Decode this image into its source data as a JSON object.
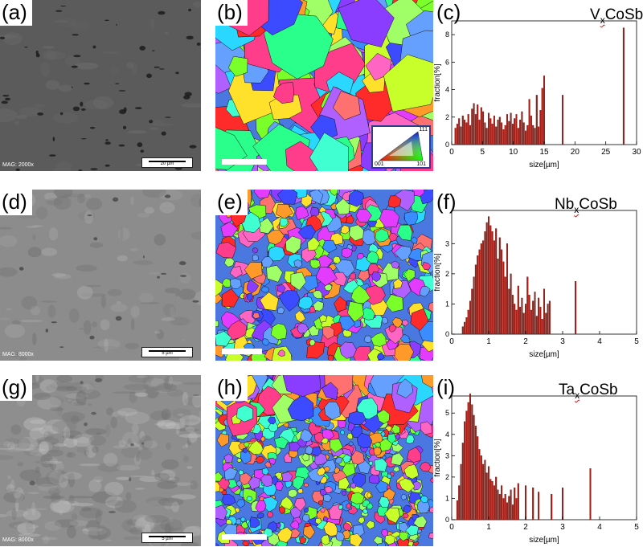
{
  "rows": [
    {
      "sem": {
        "label": "(a)",
        "mag": "MAG: 2000x",
        "scale": "20 µm"
      },
      "ebsd": {
        "label": "(b)",
        "ipf_labels": {
          "top": "111",
          "left": "001",
          "right": "101"
        }
      },
      "chart_label": "(c)",
      "comp": {
        "pre": "V",
        "sub": "x",
        "post": "CoSb"
      }
    },
    {
      "sem": {
        "label": "(d)",
        "mag": "MAG: 8000x",
        "scale": "5 µm"
      },
      "ebsd": {
        "label": "(e)"
      },
      "chart_label": "(f)",
      "comp": {
        "pre": "Nb",
        "sub": "x",
        "post": "CoSb"
      }
    },
    {
      "sem": {
        "label": "(g)",
        "mag": "MAG: 8000x",
        "scale": "5 µm"
      },
      "ebsd": {
        "label": "(h)"
      },
      "chart_label": "(i)",
      "comp": {
        "pre": "Ta",
        "sub": "x",
        "post": "CoSb"
      }
    }
  ],
  "chart_data": [
    {
      "type": "bar",
      "xlabel": "size[µm]",
      "ylabel": "fraction[%]",
      "xlim": [
        0,
        30
      ],
      "ylim": [
        0,
        9
      ],
      "xticks": [
        0,
        5,
        10,
        15,
        20,
        25,
        30
      ],
      "yticks": [
        0,
        2,
        4,
        6,
        8
      ],
      "color": "#a81e16",
      "x": [
        0.6,
        0.9,
        1.2,
        1.5,
        1.8,
        2.1,
        2.4,
        2.7,
        3.0,
        3.3,
        3.6,
        3.9,
        4.2,
        4.5,
        4.8,
        5.1,
        5.4,
        5.7,
        6.0,
        6.3,
        6.6,
        6.9,
        7.2,
        7.5,
        7.8,
        8.1,
        8.4,
        8.7,
        9.0,
        9.3,
        9.6,
        9.9,
        10.2,
        10.5,
        10.8,
        11.1,
        11.4,
        11.7,
        12.0,
        12.3,
        12.6,
        12.9,
        13.2,
        13.5,
        13.8,
        14.1,
        14.4,
        14.7,
        15.0,
        18.0,
        27.9
      ],
      "values": [
        1.2,
        1.5,
        1.9,
        1.3,
        2.1,
        1.8,
        1.6,
        2.2,
        1.4,
        2.6,
        3.0,
        2.2,
        2.9,
        1.8,
        2.7,
        2.4,
        1.6,
        1.2,
        2.3,
        1.9,
        1.5,
        2.1,
        1.3,
        1.8,
        2.0,
        1.6,
        1.1,
        1.4,
        2.2,
        1.7,
        2.3,
        1.5,
        1.9,
        2.2,
        1.2,
        1.8,
        2.4,
        1.6,
        1.0,
        1.4,
        3.3,
        2.1,
        1.4,
        1.2,
        3.6,
        1.3,
        2.5,
        4.1,
        5.0,
        3.6,
        8.5
      ]
    },
    {
      "type": "bar",
      "xlabel": "size[µm]",
      "ylabel": "fraction[%]",
      "xlim": [
        0,
        5
      ],
      "ylim": [
        0,
        4.1
      ],
      "xticks": [
        0,
        1,
        2,
        3,
        4,
        5
      ],
      "yticks": [
        0,
        1,
        2,
        3
      ],
      "color": "#a81e16",
      "x": [
        0.3,
        0.35,
        0.4,
        0.45,
        0.5,
        0.55,
        0.6,
        0.65,
        0.7,
        0.75,
        0.8,
        0.85,
        0.9,
        0.95,
        1.0,
        1.05,
        1.1,
        1.15,
        1.2,
        1.25,
        1.3,
        1.35,
        1.4,
        1.45,
        1.5,
        1.55,
        1.6,
        1.65,
        1.7,
        1.75,
        1.8,
        1.85,
        1.9,
        1.95,
        2.0,
        2.05,
        2.1,
        2.15,
        2.2,
        2.25,
        2.3,
        2.35,
        2.4,
        2.45,
        2.5,
        2.55,
        2.6,
        2.65,
        3.35
      ],
      "values": [
        0.25,
        0.4,
        0.55,
        0.8,
        1.1,
        1.5,
        1.9,
        2.3,
        2.6,
        2.8,
        3.0,
        3.1,
        3.4,
        3.7,
        3.9,
        3.6,
        3.4,
        3.1,
        3.5,
        2.5,
        3.2,
        2.8,
        2.4,
        1.9,
        3.0,
        1.5,
        2.0,
        1.3,
        1.0,
        0.8,
        1.6,
        0.9,
        1.2,
        0.7,
        1.0,
        1.9,
        1.3,
        0.8,
        1.1,
        1.4,
        0.6,
        1.2,
        0.9,
        0.5,
        1.5,
        0.7,
        1.0,
        1.1,
        1.75
      ]
    },
    {
      "type": "bar",
      "xlabel": "size[µm]",
      "ylabel": "fraction[%]",
      "xlim": [
        0,
        5
      ],
      "ylim": [
        0,
        5.8
      ],
      "xticks": [
        0,
        1,
        2,
        3,
        4,
        5
      ],
      "yticks": [
        0,
        1,
        2,
        3,
        4,
        5
      ],
      "color": "#a81e16",
      "x": [
        0.15,
        0.2,
        0.25,
        0.3,
        0.35,
        0.4,
        0.45,
        0.5,
        0.55,
        0.6,
        0.65,
        0.7,
        0.75,
        0.8,
        0.85,
        0.9,
        0.95,
        1.0,
        1.05,
        1.1,
        1.15,
        1.2,
        1.25,
        1.3,
        1.35,
        1.4,
        1.45,
        1.5,
        1.55,
        1.6,
        1.65,
        1.7,
        1.75,
        1.8,
        2.0,
        2.2,
        2.35,
        2.7,
        3.0,
        3.75
      ],
      "values": [
        0.9,
        1.6,
        2.6,
        3.6,
        4.6,
        5.1,
        5.5,
        5.9,
        5.4,
        4.9,
        4.4,
        3.9,
        3.3,
        3.0,
        2.6,
        2.8,
        2.2,
        2.5,
        1.9,
        1.8,
        1.6,
        2.0,
        1.4,
        1.2,
        1.6,
        1.0,
        1.2,
        0.8,
        1.1,
        1.4,
        0.7,
        1.5,
        1.0,
        1.7,
        1.6,
        1.5,
        1.3,
        1.2,
        1.5,
        2.4
      ]
    }
  ]
}
